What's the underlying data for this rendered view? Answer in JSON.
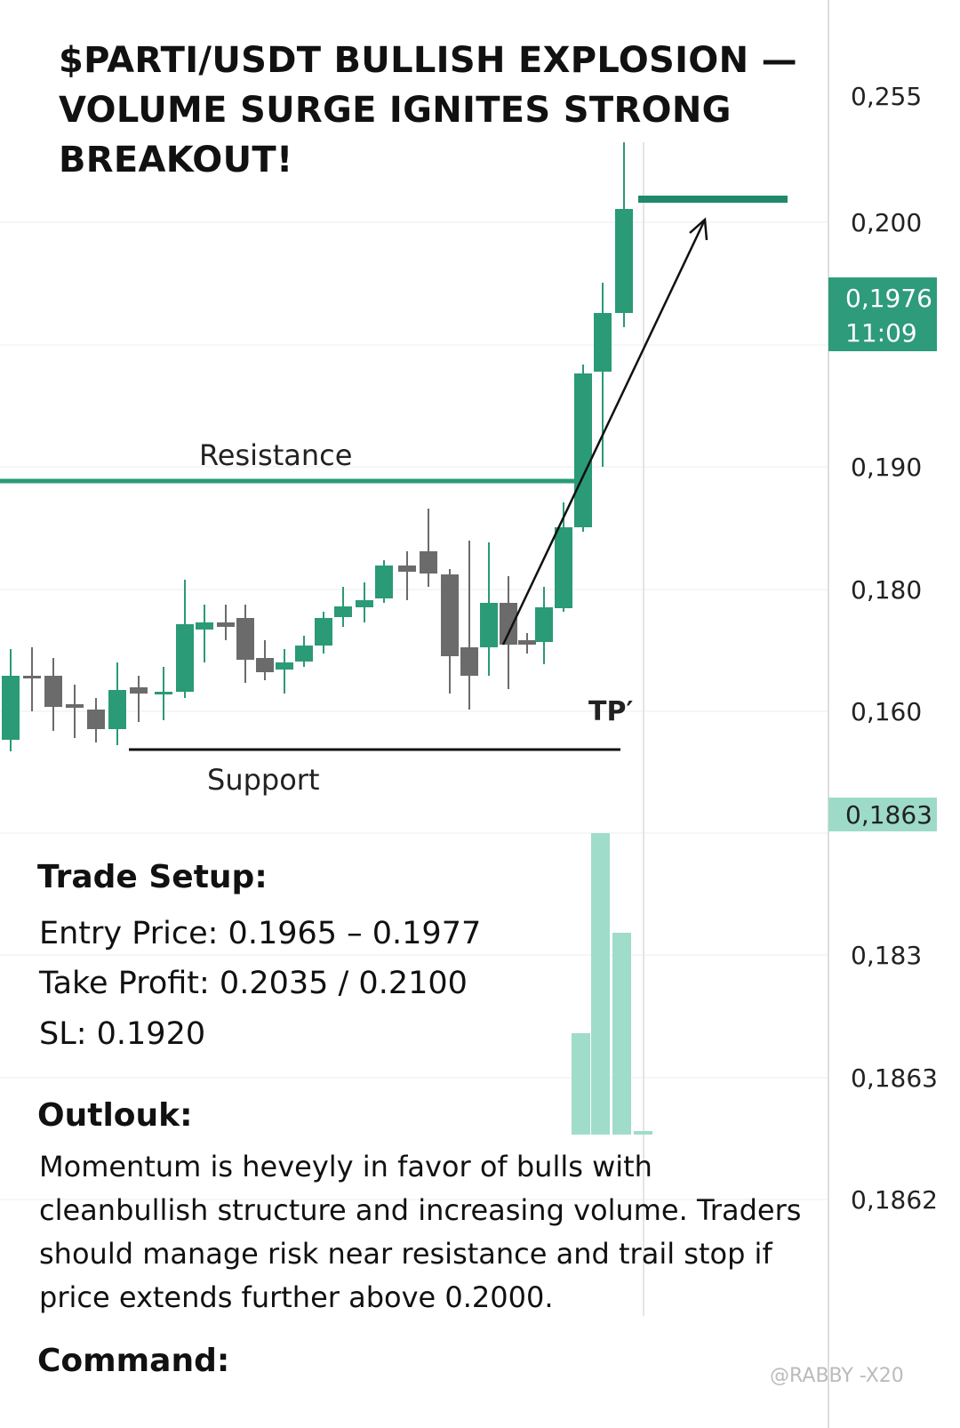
{
  "title": "$PARTI/USDT BULLISH EXPLOSION — VOLUME SURGE IGNITES STRONG BREAKOUT!",
  "price_axis": [
    "0,255",
    "0,200",
    "0,190",
    "0,180",
    "0,160",
    "0,183",
    "0,1863",
    "0,1862"
  ],
  "price_tags": [
    {
      "price": "0,1976",
      "time": "11:09"
    },
    {
      "price": "0,1863"
    }
  ],
  "chart_labels": {
    "resistance": "Resistance",
    "support": "Support",
    "tp": "TP′"
  },
  "trade_setup": {
    "heading": "Trade Setup:",
    "lines": [
      "Entry Price: 0.1965 – 0.1977",
      "Take Profit: 0.2035 / 0.2100",
      "SL: 0.1920"
    ]
  },
  "outlook": {
    "heading": "Outlouk:",
    "text": "Momentum is heveyly in favor of bulls with cleanbullish structure and increasing volume. Traders should manage risk near resistance and trail stop if price extends further above 0.2000."
  },
  "command": {
    "heading": "Command:"
  },
  "watermark": "@RABBY -X20"
}
